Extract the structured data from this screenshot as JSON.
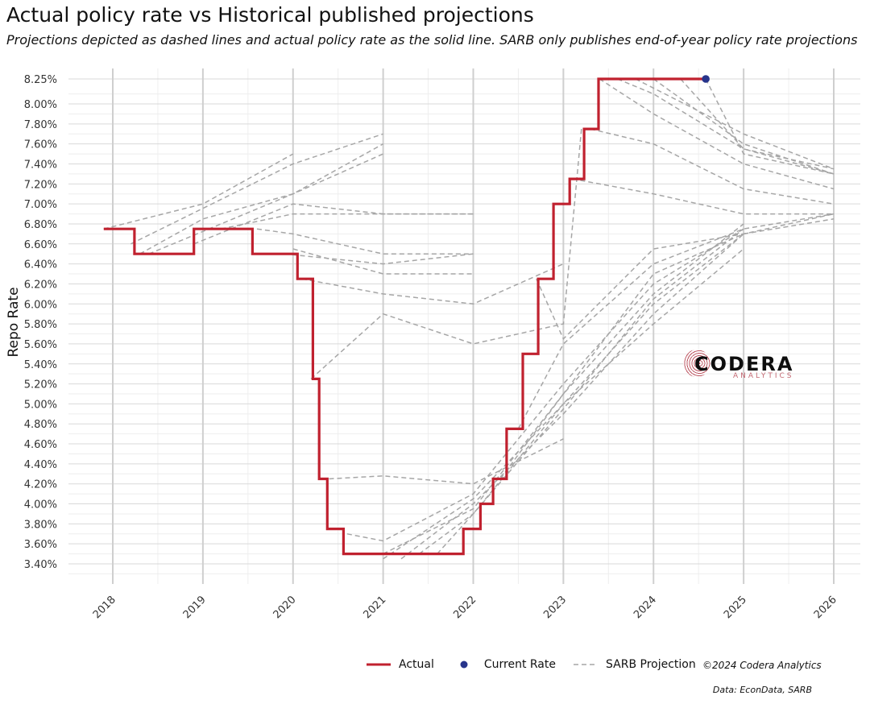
{
  "title": "Actual policy rate vs Historical published projections",
  "subtitle": "Projections depicted as dashed lines and actual policy rate as the solid line. SARB only publishes end-of-year policy rate projections",
  "credit": "©2024 Codera Analytics",
  "source": "Data: EconData, SARB",
  "logo": {
    "word": "CODERA",
    "sub": "ANALYTICS"
  },
  "colors": {
    "actual": "#c0212f",
    "current": "#27348b",
    "projection": "#a6a6a6",
    "grid_major": "#d9d9d9",
    "grid_minor": "#eeeeee"
  },
  "legend": [
    {
      "label": "Actual",
      "key": "actual"
    },
    {
      "label": "Current Rate",
      "key": "current"
    },
    {
      "label": "SARB Projection",
      "key": "projection"
    }
  ],
  "chart_data": {
    "type": "line",
    "title": "Actual policy rate vs Historical published projections",
    "ylabel": "Repo Rate",
    "xlabel": "",
    "xlim": [
      2017.9,
      2026.0
    ],
    "ylim": [
      3.4,
      8.25
    ],
    "x_ticks": [
      "2018",
      "2019",
      "2020",
      "2021",
      "2022",
      "2023",
      "2024",
      "2025",
      "2026"
    ],
    "y_ticks": [
      "3.40%",
      "3.60%",
      "3.80%",
      "4.00%",
      "4.20%",
      "4.40%",
      "4.60%",
      "4.80%",
      "5.00%",
      "5.20%",
      "5.40%",
      "5.60%",
      "5.80%",
      "6.00%",
      "6.20%",
      "6.40%",
      "6.60%",
      "6.80%",
      "7.00%",
      "7.20%",
      "7.40%",
      "7.60%",
      "7.80%",
      "8.00%",
      "8.25%"
    ],
    "grid": true,
    "legend_position": "bottom",
    "actual": {
      "name": "Actual",
      "points": [
        [
          2017.9,
          6.75
        ],
        [
          2018.24,
          6.75
        ],
        [
          2018.24,
          6.5
        ],
        [
          2018.9,
          6.5
        ],
        [
          2018.9,
          6.75
        ],
        [
          2019.55,
          6.75
        ],
        [
          2019.55,
          6.5
        ],
        [
          2020.05,
          6.5
        ],
        [
          2020.05,
          6.25
        ],
        [
          2020.22,
          6.25
        ],
        [
          2020.22,
          5.25
        ],
        [
          2020.29,
          5.25
        ],
        [
          2020.29,
          4.25
        ],
        [
          2020.38,
          4.25
        ],
        [
          2020.38,
          3.75
        ],
        [
          2020.56,
          3.75
        ],
        [
          2020.56,
          3.5
        ],
        [
          2021.89,
          3.5
        ],
        [
          2021.89,
          3.75
        ],
        [
          2022.08,
          3.75
        ],
        [
          2022.08,
          4.0
        ],
        [
          2022.22,
          4.0
        ],
        [
          2022.22,
          4.25
        ],
        [
          2022.37,
          4.25
        ],
        [
          2022.37,
          4.75
        ],
        [
          2022.55,
          4.75
        ],
        [
          2022.55,
          5.5
        ],
        [
          2022.72,
          5.5
        ],
        [
          2022.72,
          6.25
        ],
        [
          2022.89,
          6.25
        ],
        [
          2022.89,
          7.0
        ],
        [
          2023.07,
          7.0
        ],
        [
          2023.07,
          7.25
        ],
        [
          2023.23,
          7.25
        ],
        [
          2023.23,
          7.75
        ],
        [
          2023.39,
          7.75
        ],
        [
          2023.39,
          8.25
        ],
        [
          2024.58,
          8.25
        ]
      ]
    },
    "current_rate": {
      "name": "Current Rate",
      "x": 2024.58,
      "y": 8.25
    },
    "projections": [
      {
        "points": [
          [
            2017.9,
            6.75
          ],
          [
            2019.0,
            7.0
          ],
          [
            2020.0,
            7.5
          ]
        ]
      },
      {
        "points": [
          [
            2018.2,
            6.6
          ],
          [
            2020.0,
            7.4
          ],
          [
            2021.0,
            7.7
          ]
        ]
      },
      {
        "points": [
          [
            2018.3,
            6.5
          ],
          [
            2019.0,
            6.85
          ],
          [
            2020.0,
            7.1
          ],
          [
            2021.0,
            7.6
          ]
        ]
      },
      {
        "points": [
          [
            2018.4,
            6.5
          ],
          [
            2019.2,
            6.8
          ],
          [
            2020.0,
            7.1
          ],
          [
            2021.0,
            7.5
          ]
        ]
      },
      {
        "points": [
          [
            2018.9,
            6.6
          ],
          [
            2020.0,
            7.0
          ],
          [
            2021.0,
            6.9
          ],
          [
            2022.0,
            6.9
          ]
        ]
      },
      {
        "points": [
          [
            2019.2,
            6.75
          ],
          [
            2020.0,
            6.9
          ],
          [
            2021.0,
            6.9
          ],
          [
            2022.0,
            6.9
          ]
        ]
      },
      {
        "points": [
          [
            2019.6,
            6.75
          ],
          [
            2020.0,
            6.7
          ],
          [
            2021.0,
            6.5
          ],
          [
            2022.0,
            6.5
          ]
        ]
      },
      {
        "points": [
          [
            2019.9,
            6.5
          ],
          [
            2021.0,
            6.4
          ],
          [
            2022.0,
            6.5
          ]
        ]
      },
      {
        "points": [
          [
            2020.0,
            6.55
          ],
          [
            2021.0,
            6.3
          ],
          [
            2022.0,
            6.3
          ]
        ]
      },
      {
        "points": [
          [
            2020.1,
            6.25
          ],
          [
            2021.0,
            6.1
          ],
          [
            2022.0,
            6.0
          ],
          [
            2023.0,
            6.4
          ]
        ]
      },
      {
        "points": [
          [
            2020.2,
            5.25
          ],
          [
            2021.0,
            5.9
          ],
          [
            2022.0,
            5.6
          ],
          [
            2023.0,
            5.8
          ],
          [
            2023.2,
            7.75
          ]
        ]
      },
      {
        "points": [
          [
            2020.4,
            4.25
          ],
          [
            2021.0,
            4.28
          ],
          [
            2022.0,
            4.2
          ],
          [
            2023.0,
            4.65
          ]
        ]
      },
      {
        "points": [
          [
            2020.6,
            3.7
          ],
          [
            2021.0,
            3.63
          ],
          [
            2022.0,
            4.1
          ],
          [
            2023.0,
            5.2
          ],
          [
            2024.0,
            6.2
          ],
          [
            2025.0,
            6.75
          ]
        ]
      },
      {
        "points": [
          [
            2021.0,
            3.45
          ],
          [
            2022.0,
            4.05
          ],
          [
            2023.0,
            5.0
          ],
          [
            2024.0,
            6.0
          ],
          [
            2025.0,
            6.7
          ]
        ]
      },
      {
        "points": [
          [
            2021.0,
            3.5
          ],
          [
            2022.0,
            3.95
          ],
          [
            2023.0,
            5.1
          ],
          [
            2024.0,
            6.1
          ],
          [
            2025.0,
            6.8
          ]
        ]
      },
      {
        "points": [
          [
            2021.2,
            3.45
          ],
          [
            2022.0,
            4.0
          ],
          [
            2023.0,
            4.9
          ],
          [
            2024.0,
            5.9
          ],
          [
            2025.0,
            6.7
          ]
        ]
      },
      {
        "points": [
          [
            2021.4,
            3.5
          ],
          [
            2022.0,
            3.9
          ],
          [
            2023.0,
            4.95
          ],
          [
            2024.0,
            6.05
          ],
          [
            2025.0,
            6.75
          ]
        ]
      },
      {
        "points": [
          [
            2021.6,
            3.5
          ],
          [
            2022.0,
            3.9
          ],
          [
            2023.0,
            5.0
          ],
          [
            2024.0,
            5.8
          ],
          [
            2025.0,
            6.55
          ]
        ]
      },
      {
        "points": [
          [
            2022.3,
            4.25
          ],
          [
            2023.0,
            5.1
          ],
          [
            2024.0,
            6.3
          ],
          [
            2025.0,
            6.7
          ],
          [
            2026.0,
            6.85
          ]
        ]
      },
      {
        "points": [
          [
            2022.5,
            4.75
          ],
          [
            2023.0,
            5.6
          ],
          [
            2024.0,
            6.4
          ],
          [
            2025.0,
            6.75
          ],
          [
            2026.0,
            6.9
          ]
        ]
      },
      {
        "points": [
          [
            2022.7,
            6.25
          ],
          [
            2023.0,
            5.65
          ],
          [
            2024.0,
            6.55
          ],
          [
            2025.0,
            6.7
          ],
          [
            2026.0,
            6.9
          ]
        ]
      },
      {
        "points": [
          [
            2023.1,
            7.25
          ],
          [
            2024.0,
            7.1
          ],
          [
            2025.0,
            6.9
          ],
          [
            2026.0,
            6.9
          ]
        ]
      },
      {
        "points": [
          [
            2023.3,
            7.75
          ],
          [
            2024.0,
            7.6
          ],
          [
            2025.0,
            7.15
          ],
          [
            2026.0,
            7.0
          ]
        ]
      },
      {
        "points": [
          [
            2023.4,
            8.25
          ],
          [
            2024.0,
            7.9
          ],
          [
            2025.0,
            7.4
          ],
          [
            2026.0,
            7.15
          ]
        ]
      },
      {
        "points": [
          [
            2023.6,
            8.25
          ],
          [
            2024.0,
            8.1
          ],
          [
            2025.0,
            7.55
          ],
          [
            2026.0,
            7.35
          ]
        ]
      },
      {
        "points": [
          [
            2023.8,
            8.25
          ],
          [
            2025.0,
            7.7
          ],
          [
            2026.0,
            7.35
          ]
        ]
      },
      {
        "points": [
          [
            2024.0,
            8.25
          ],
          [
            2025.0,
            7.6
          ],
          [
            2026.0,
            7.3
          ]
        ]
      },
      {
        "points": [
          [
            2024.3,
            8.25
          ],
          [
            2025.0,
            7.55
          ],
          [
            2026.0,
            7.3
          ]
        ]
      },
      {
        "points": [
          [
            2024.58,
            8.25
          ],
          [
            2025.0,
            7.5
          ],
          [
            2026.0,
            7.3
          ]
        ]
      }
    ]
  }
}
